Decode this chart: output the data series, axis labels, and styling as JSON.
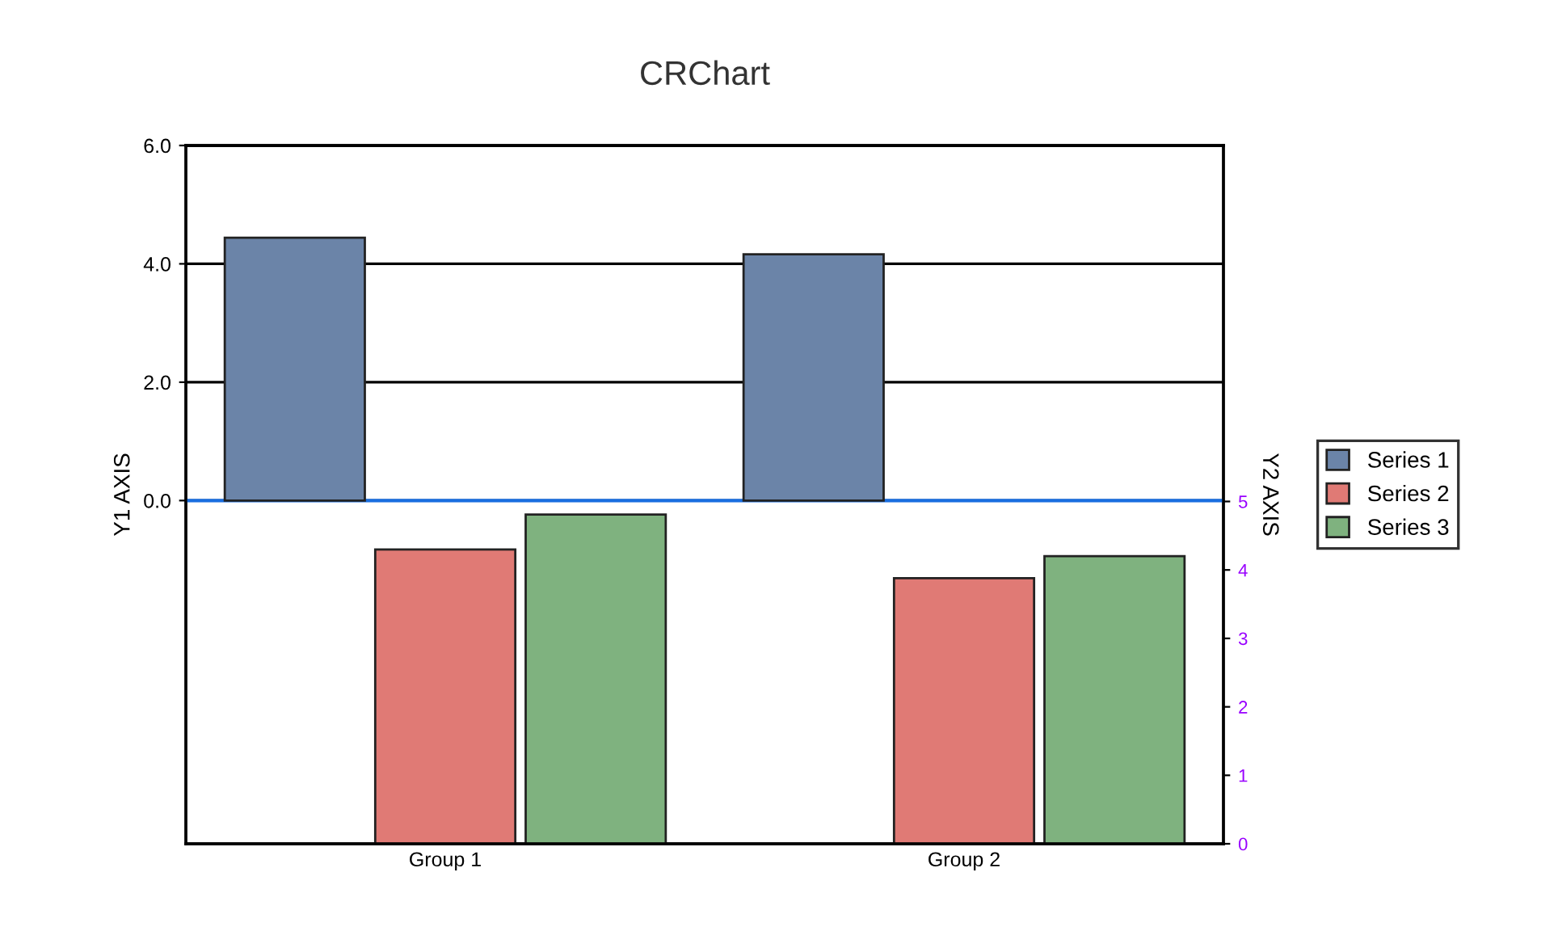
{
  "chart_data": {
    "type": "bar",
    "title": "CRChart",
    "ylabel": "Y1 AXIS",
    "y2label": "Y2 AXIS",
    "categories": [
      "Group 1",
      "Group 2"
    ],
    "series": [
      {
        "name": "Series 1",
        "color": "#6b84a8",
        "values": [
          4.44,
          4.16
        ]
      },
      {
        "name": "Series 2",
        "color": "#e07a75",
        "values": [
          4.3,
          3.88
        ],
        "axis": "y2"
      },
      {
        "name": "Series 3",
        "color": "#7fb27f",
        "values": [
          4.81,
          4.2
        ],
        "axis": "y2"
      }
    ],
    "ylim": [
      -5.8,
      6.0
    ],
    "yticks": [
      {
        "value": 0,
        "label": "0.0"
      },
      {
        "value": 2,
        "label": "2.0"
      },
      {
        "value": 4,
        "label": "4.0"
      },
      {
        "value": 6,
        "label": "6.0"
      }
    ],
    "y2lim": [
      0,
      10.2
    ],
    "y2ticks": [
      0,
      1,
      2,
      3,
      4,
      5
    ],
    "ref_lines": [
      {
        "axis": "y",
        "value": 0,
        "color": "#1a6ee0"
      }
    ],
    "grid": "y",
    "legend": "right"
  }
}
